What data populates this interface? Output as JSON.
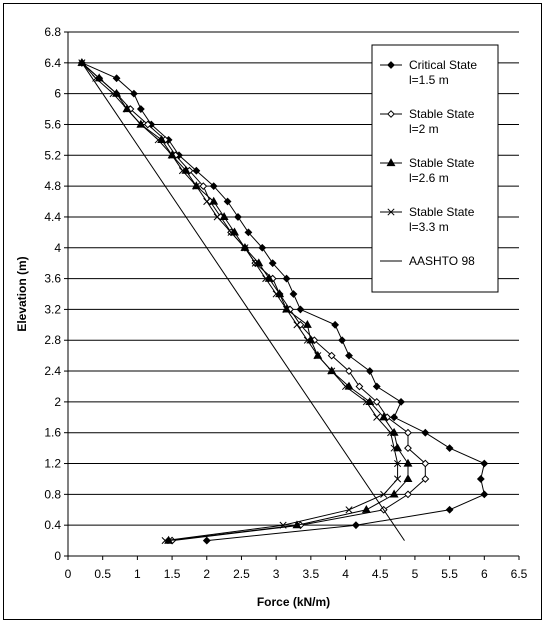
{
  "chart_data": {
    "type": "line",
    "title": "",
    "xlabel": "Force (kN/m)",
    "ylabel": "Elevation (m)",
    "xlim": [
      0,
      6.5
    ],
    "ylim": [
      0,
      6.8
    ],
    "x_ticks": [
      "0",
      "0.5",
      "1",
      "1.5",
      "2",
      "2.5",
      "3",
      "3.5",
      "4",
      "4.5",
      "5",
      "5.5",
      "6",
      "6.5"
    ],
    "y_ticks": [
      "0",
      "0.4",
      "0.8",
      "1.2",
      "1.6",
      "2",
      "2.4",
      "2.8",
      "3.2",
      "3.6",
      "4",
      "4.4",
      "4.8",
      "5.2",
      "5.6",
      "6",
      "6.4",
      "6.8"
    ],
    "grid": "horizontal",
    "legend_position": "top-right",
    "colors": {
      "line": "#000000",
      "background": "#ffffff"
    },
    "series": [
      {
        "name": "Critical State l=1.5 m",
        "legend_lines": [
          "Critical State",
          "l=1.5 m"
        ],
        "marker": "diamond-filled",
        "points": [
          [
            0.2,
            6.4
          ],
          [
            0.7,
            6.2
          ],
          [
            0.95,
            6.0
          ],
          [
            1.05,
            5.8
          ],
          [
            1.2,
            5.6
          ],
          [
            1.45,
            5.4
          ],
          [
            1.6,
            5.2
          ],
          [
            1.85,
            5.0
          ],
          [
            2.1,
            4.8
          ],
          [
            2.3,
            4.6
          ],
          [
            2.45,
            4.4
          ],
          [
            2.6,
            4.2
          ],
          [
            2.8,
            4.0
          ],
          [
            2.95,
            3.8
          ],
          [
            3.15,
            3.6
          ],
          [
            3.25,
            3.4
          ],
          [
            3.35,
            3.2
          ],
          [
            3.85,
            3.0
          ],
          [
            3.95,
            2.8
          ],
          [
            4.05,
            2.6
          ],
          [
            4.35,
            2.4
          ],
          [
            4.45,
            2.2
          ],
          [
            4.8,
            2.0
          ],
          [
            4.7,
            1.8
          ],
          [
            5.15,
            1.6
          ],
          [
            5.5,
            1.4
          ],
          [
            6.0,
            1.2
          ],
          [
            5.95,
            1.0
          ],
          [
            6.0,
            0.8
          ],
          [
            5.5,
            0.6
          ],
          [
            4.15,
            0.4
          ],
          [
            2.0,
            0.2
          ]
        ]
      },
      {
        "name": "Stable State l=2 m",
        "legend_lines": [
          "Stable State",
          "l=2 m"
        ],
        "marker": "diamond-open",
        "points": [
          [
            0.2,
            6.4
          ],
          [
            0.45,
            6.2
          ],
          [
            0.7,
            6.0
          ],
          [
            0.9,
            5.8
          ],
          [
            1.15,
            5.6
          ],
          [
            1.4,
            5.4
          ],
          [
            1.55,
            5.2
          ],
          [
            1.75,
            5.0
          ],
          [
            1.95,
            4.8
          ],
          [
            2.05,
            4.6
          ],
          [
            2.2,
            4.4
          ],
          [
            2.35,
            4.2
          ],
          [
            2.55,
            4.0
          ],
          [
            2.7,
            3.8
          ],
          [
            2.95,
            3.6
          ],
          [
            3.05,
            3.4
          ],
          [
            3.2,
            3.2
          ],
          [
            3.35,
            3.0
          ],
          [
            3.55,
            2.8
          ],
          [
            3.8,
            2.6
          ],
          [
            4.05,
            2.4
          ],
          [
            4.2,
            2.2
          ],
          [
            4.45,
            2.0
          ],
          [
            4.6,
            1.8
          ],
          [
            4.9,
            1.6
          ],
          [
            4.9,
            1.4
          ],
          [
            5.15,
            1.2
          ],
          [
            5.15,
            1.0
          ],
          [
            4.9,
            0.8
          ],
          [
            4.55,
            0.6
          ],
          [
            3.35,
            0.4
          ],
          [
            1.5,
            0.2
          ]
        ]
      },
      {
        "name": "Stable State l=2.6 m",
        "legend_lines": [
          "Stable State",
          "l=2.6 m"
        ],
        "marker": "triangle-filled",
        "points": [
          [
            0.2,
            6.4
          ],
          [
            0.45,
            6.2
          ],
          [
            0.7,
            6.0
          ],
          [
            0.85,
            5.8
          ],
          [
            1.05,
            5.6
          ],
          [
            1.35,
            5.4
          ],
          [
            1.5,
            5.2
          ],
          [
            1.7,
            5.0
          ],
          [
            1.85,
            4.8
          ],
          [
            2.1,
            4.6
          ],
          [
            2.25,
            4.4
          ],
          [
            2.4,
            4.2
          ],
          [
            2.55,
            4.0
          ],
          [
            2.75,
            3.8
          ],
          [
            2.9,
            3.6
          ],
          [
            3.05,
            3.4
          ],
          [
            3.15,
            3.2
          ],
          [
            3.45,
            3.0
          ],
          [
            3.5,
            2.8
          ],
          [
            3.6,
            2.6
          ],
          [
            3.8,
            2.4
          ],
          [
            4.05,
            2.2
          ],
          [
            4.35,
            2.0
          ],
          [
            4.55,
            1.8
          ],
          [
            4.7,
            1.6
          ],
          [
            4.75,
            1.4
          ],
          [
            4.9,
            1.2
          ],
          [
            4.9,
            1.0
          ],
          [
            4.7,
            0.8
          ],
          [
            4.3,
            0.6
          ],
          [
            3.3,
            0.4
          ],
          [
            1.45,
            0.2
          ]
        ]
      },
      {
        "name": "Stable State l=3.3 m",
        "legend_lines": [
          "Stable State",
          "l=3.3 m"
        ],
        "marker": "cross",
        "points": [
          [
            0.2,
            6.4
          ],
          [
            0.4,
            6.2
          ],
          [
            0.65,
            6.0
          ],
          [
            0.85,
            5.8
          ],
          [
            1.05,
            5.6
          ],
          [
            1.3,
            5.4
          ],
          [
            1.5,
            5.2
          ],
          [
            1.65,
            5.0
          ],
          [
            1.85,
            4.8
          ],
          [
            2.0,
            4.6
          ],
          [
            2.15,
            4.4
          ],
          [
            2.35,
            4.2
          ],
          [
            2.55,
            4.0
          ],
          [
            2.7,
            3.8
          ],
          [
            2.85,
            3.6
          ],
          [
            3.0,
            3.4
          ],
          [
            3.15,
            3.2
          ],
          [
            3.3,
            3.0
          ],
          [
            3.45,
            2.8
          ],
          [
            3.6,
            2.6
          ],
          [
            3.8,
            2.4
          ],
          [
            4.0,
            2.2
          ],
          [
            4.3,
            2.0
          ],
          [
            4.45,
            1.8
          ],
          [
            4.65,
            1.6
          ],
          [
            4.7,
            1.4
          ],
          [
            4.75,
            1.2
          ],
          [
            4.75,
            1.0
          ],
          [
            4.55,
            0.8
          ],
          [
            4.05,
            0.6
          ],
          [
            3.1,
            0.4
          ],
          [
            1.4,
            0.2
          ]
        ]
      },
      {
        "name": "AASHTO 98",
        "legend_lines": [
          "AASHTO 98"
        ],
        "marker": "none",
        "points": [
          [
            0.2,
            6.4
          ],
          [
            4.85,
            0.2
          ]
        ]
      }
    ]
  }
}
